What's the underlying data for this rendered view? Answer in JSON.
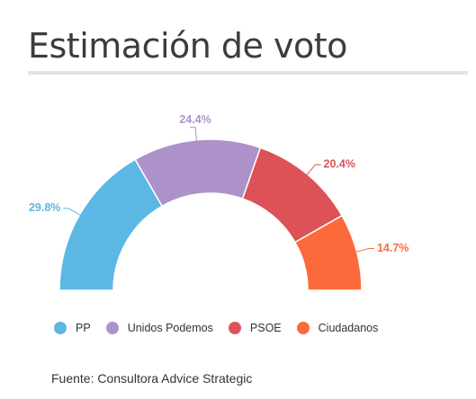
{
  "title": "Estimación de voto",
  "source": "Fuente: Consultora Advice Strategic",
  "chart_data": {
    "type": "pie",
    "subtype": "semicircle-donut",
    "categories": [
      "PP",
      "Unidos Podemos",
      "PSOE",
      "Ciudadanos"
    ],
    "values": [
      29.8,
      24.4,
      20.4,
      14.7
    ],
    "value_labels": [
      "29.8%",
      "24.4%",
      "20.4%",
      "14.7%"
    ],
    "colors": [
      "#5db7e5",
      "#ad92c9",
      "#dc5257",
      "#fc6a3b"
    ],
    "legend_position": "bottom-left"
  }
}
